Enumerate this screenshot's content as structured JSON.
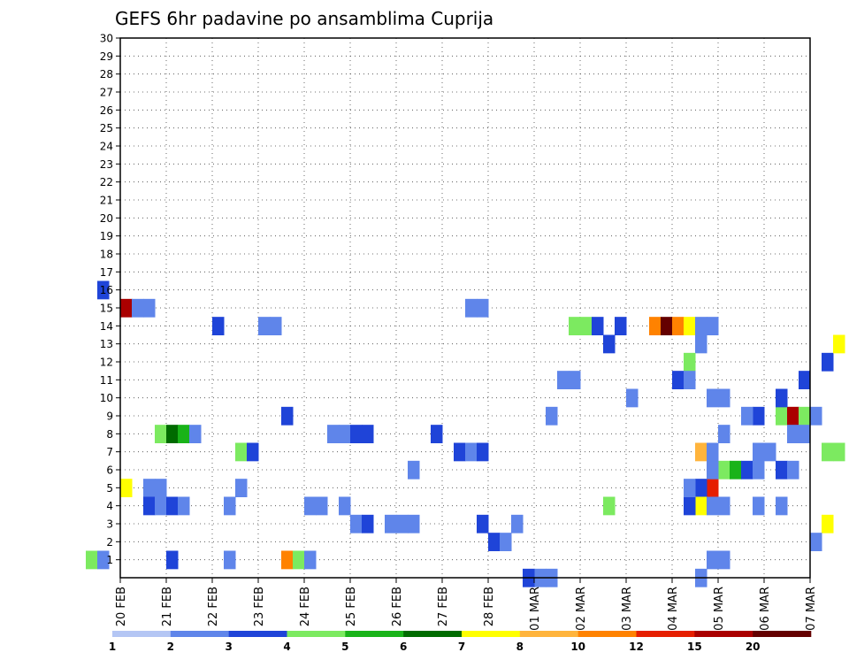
{
  "chart_data": {
    "type": "heatmap",
    "title": "GEFS 6hr padavine po ansamblima Cuprija",
    "xlabel": "",
    "ylabel": "",
    "x_ticks": [
      "20 FEB",
      "21 FEB",
      "22 FEB",
      "23 FEB",
      "24 FEB",
      "25 FEB",
      "26 FEB",
      "27 FEB",
      "28 FEB",
      "01 MAR",
      "02 MAR",
      "03 MAR",
      "04 MAR",
      "05 MAR",
      "06 MAR",
      "07 MAR"
    ],
    "y_ticks": [
      1,
      2,
      3,
      4,
      5,
      6,
      7,
      8,
      9,
      10,
      11,
      12,
      13,
      14,
      15,
      16,
      17,
      18,
      19,
      20,
      21,
      22,
      23,
      24,
      25,
      26,
      27,
      28,
      29,
      30
    ],
    "time_step_hours": 6,
    "xlim_days": [
      0,
      15
    ],
    "ylim": [
      0,
      30
    ],
    "grid": "dotted",
    "legend_placement": "bottom",
    "levels": [
      "1",
      "2",
      "3",
      "4",
      "5",
      "6",
      "7",
      "8",
      "10",
      "12",
      "15",
      "20"
    ],
    "colors": [
      "#b4c6f4",
      "#5f85ea",
      "#1f44d8",
      "#7cea60",
      "#19b319",
      "#006b00",
      "#ffff00",
      "#ffb43c",
      "#ff8200",
      "#e61e00",
      "#aa0000",
      "#640000"
    ],
    "cells": [
      [
        15,
        0.0,
        9.5
      ],
      [
        15,
        0.25,
        1
      ],
      [
        15,
        0.5,
        1
      ],
      [
        14,
        2.0,
        2
      ],
      [
        14,
        3.0,
        1
      ],
      [
        14,
        3.25,
        1
      ],
      [
        16,
        -0.5,
        2
      ],
      [
        1,
        -0.75,
        3
      ],
      [
        1,
        -0.5,
        1
      ],
      [
        1,
        1.0,
        2
      ],
      [
        1,
        2.25,
        1
      ],
      [
        1,
        3.5,
        8
      ],
      [
        1,
        3.75,
        3
      ],
      [
        1,
        4.0,
        1
      ],
      [
        5,
        0.0,
        6
      ],
      [
        5,
        0.5,
        1
      ],
      [
        5,
        0.75,
        1
      ],
      [
        4,
        0.5,
        2
      ],
      [
        4,
        0.75,
        1
      ],
      [
        4,
        1.0,
        2
      ],
      [
        4,
        1.25,
        1
      ],
      [
        4,
        2.25,
        1
      ],
      [
        5,
        2.5,
        1
      ],
      [
        4,
        4.0,
        1
      ],
      [
        4,
        4.25,
        1
      ],
      [
        4,
        4.75,
        1
      ],
      [
        3,
        5.0,
        1
      ],
      [
        3,
        5.25,
        2
      ],
      [
        3,
        5.75,
        1
      ],
      [
        3,
        6.0,
        1
      ],
      [
        3,
        6.25,
        1
      ],
      [
        3,
        7.75,
        2
      ],
      [
        7,
        7.25,
        2
      ],
      [
        7,
        7.5,
        1
      ],
      [
        8,
        0.75,
        3
      ],
      [
        8,
        1.0,
        5
      ],
      [
        8,
        1.25,
        4
      ],
      [
        8,
        1.5,
        1
      ],
      [
        8,
        4.5,
        1
      ],
      [
        8,
        4.75,
        1
      ],
      [
        8,
        5.0,
        2
      ],
      [
        8,
        5.25,
        2
      ],
      [
        9,
        3.5,
        2
      ],
      [
        7,
        2.5,
        3
      ],
      [
        7,
        2.75,
        2
      ],
      [
        8,
        6.75,
        2
      ],
      [
        7,
        7.75,
        2
      ],
      [
        6,
        6.25,
        1
      ],
      [
        9,
        9.25,
        1
      ],
      [
        11,
        9.5,
        1
      ],
      [
        11,
        9.75,
        1
      ],
      [
        14,
        9.75,
        3
      ],
      [
        14,
        10.0,
        3
      ],
      [
        14,
        10.25,
        2
      ],
      [
        13,
        10.5,
        2
      ],
      [
        14,
        10.75,
        2
      ],
      [
        10,
        11.0,
        1
      ],
      [
        14,
        11.5,
        8
      ],
      [
        14,
        11.75,
        11
      ],
      [
        14,
        12.0,
        8
      ],
      [
        14,
        12.25,
        6
      ],
      [
        14,
        12.5,
        1
      ],
      [
        13,
        12.5,
        1
      ],
      [
        12,
        12.25,
        3
      ],
      [
        11,
        12.0,
        2
      ],
      [
        11,
        12.25,
        1
      ],
      [
        10,
        12.75,
        1
      ],
      [
        10,
        13.0,
        1
      ],
      [
        9,
        13.75,
        2
      ],
      [
        9,
        14.25,
        3
      ],
      [
        9,
        14.5,
        10
      ],
      [
        9,
        14.75,
        3
      ],
      [
        8,
        14.5,
        1
      ],
      [
        9,
        15.0,
        1
      ],
      [
        8,
        14.75,
        1
      ],
      [
        7,
        15.25,
        3
      ],
      [
        7,
        15.5,
        3
      ],
      [
        7,
        13.75,
        1
      ],
      [
        7,
        14.0,
        1
      ],
      [
        6,
        13.0,
        3
      ],
      [
        6,
        13.25,
        4
      ],
      [
        6,
        13.5,
        2
      ],
      [
        6,
        13.75,
        1
      ],
      [
        6,
        14.25,
        2
      ],
      [
        6,
        14.5,
        1
      ],
      [
        5,
        12.75,
        9
      ],
      [
        5,
        12.5,
        2
      ],
      [
        4,
        12.5,
        6
      ],
      [
        4,
        12.25,
        2
      ],
      [
        4,
        12.75,
        1
      ],
      [
        4,
        13.0,
        1
      ],
      [
        4,
        13.75,
        1
      ],
      [
        4,
        14.25,
        1
      ],
      [
        3,
        15.25,
        6
      ],
      [
        2,
        15.0,
        1
      ],
      [
        1,
        12.75,
        1
      ],
      [
        1,
        13.0,
        1
      ],
      [
        0,
        12.5,
        1
      ],
      [
        0,
        9.0,
        1
      ],
      [
        0,
        9.25,
        1
      ],
      [
        0,
        8.75,
        2
      ],
      [
        2,
        8.0,
        2
      ],
      [
        2,
        8.25,
        1
      ],
      [
        3,
        8.5,
        1
      ],
      [
        4,
        10.5,
        3
      ],
      [
        5,
        12.25,
        1
      ],
      [
        6,
        12.75,
        1
      ],
      [
        7,
        12.5,
        7
      ],
      [
        7,
        12.75,
        1
      ],
      [
        8,
        13.0,
        1
      ],
      [
        9,
        13.5,
        1
      ],
      [
        10,
        14.25,
        2
      ],
      [
        11,
        14.75,
        2
      ],
      [
        12,
        15.25,
        2
      ],
      [
        13,
        15.5,
        6
      ],
      [
        14,
        12.75,
        1
      ],
      [
        15,
        7.5,
        1
      ],
      [
        15,
        7.75,
        1
      ]
    ]
  }
}
